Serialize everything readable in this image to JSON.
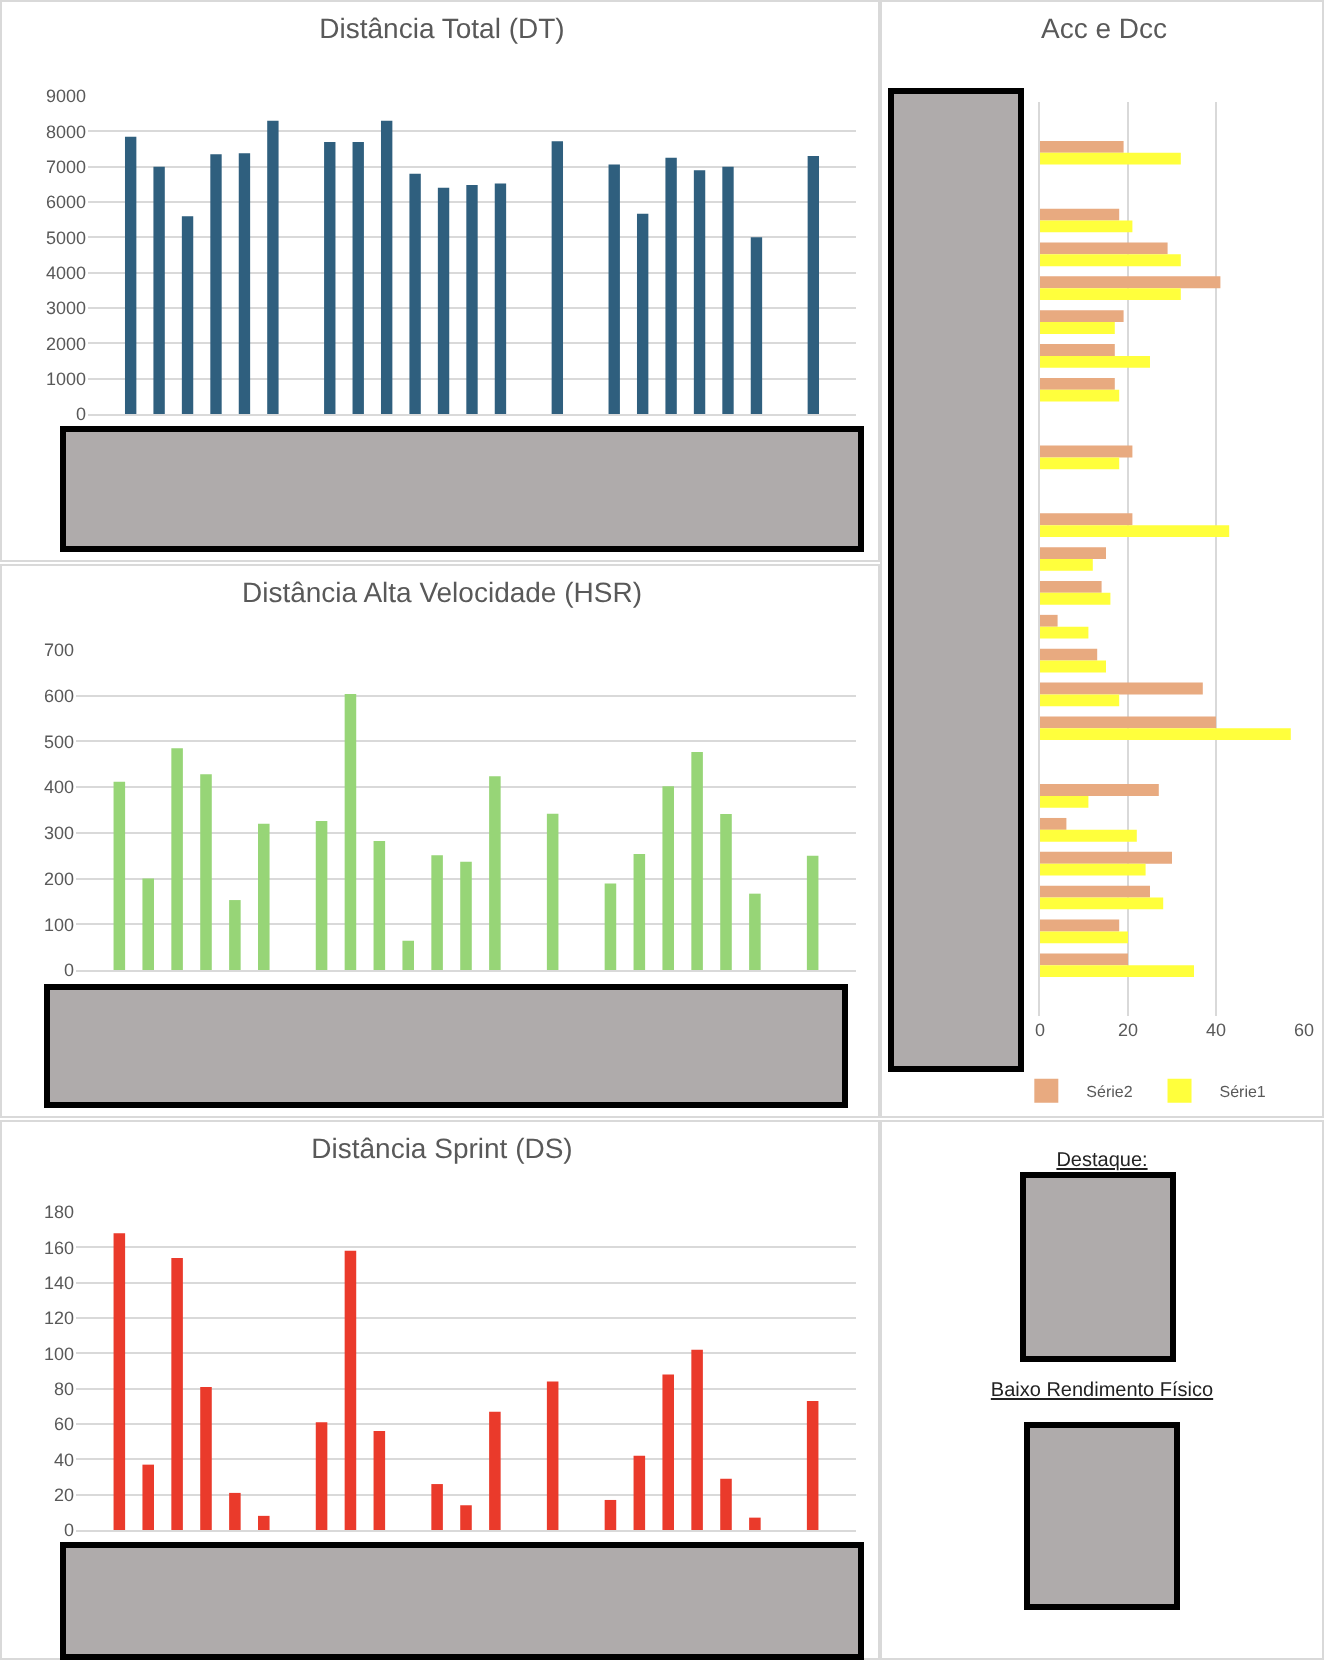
{
  "chart_data": [
    {
      "type": "bar",
      "title": "Distância Total (DT)",
      "categories": [
        null,
        null,
        null,
        null,
        null,
        null,
        null,
        null,
        null,
        null,
        null,
        null,
        null,
        null,
        null,
        null,
        null,
        null,
        null,
        null,
        null,
        null,
        null,
        null,
        null,
        null,
        null
      ],
      "values": [
        null,
        7850,
        7000,
        5600,
        7350,
        7380,
        8300,
        null,
        7700,
        7700,
        8300,
        6800,
        6400,
        6480,
        6520,
        null,
        7720,
        null,
        7060,
        5670,
        7250,
        6900,
        7000,
        5000,
        null,
        7300,
        null
      ],
      "color": "#2f5f7e",
      "ylim": [
        0,
        9000
      ],
      "yticks": [
        0,
        1000,
        2000,
        3000,
        4000,
        5000,
        6000,
        7000,
        8000,
        9000
      ],
      "grid": "y",
      "tick_labels": "y"
    },
    {
      "type": "bar",
      "title": "Distância Alta Velocidade (HSR)",
      "categories": [
        null,
        null,
        null,
        null,
        null,
        null,
        null,
        null,
        null,
        null,
        null,
        null,
        null,
        null,
        null,
        null,
        null,
        null,
        null,
        null,
        null,
        null,
        null,
        null,
        null,
        null,
        null
      ],
      "values": [
        null,
        412,
        200,
        485,
        428,
        153,
        320,
        null,
        326,
        604,
        282,
        64,
        251,
        237,
        424,
        null,
        342,
        null,
        189,
        254,
        402,
        477,
        341,
        167,
        null,
        250,
        null
      ],
      "color": "#97d577",
      "ylim": [
        0,
        700
      ],
      "yticks": [
        0,
        100,
        200,
        300,
        400,
        500,
        600,
        700
      ],
      "grid": "y",
      "tick_labels": "y"
    },
    {
      "type": "bar",
      "title": "Distância Sprint (DS)",
      "categories": [
        null,
        null,
        null,
        null,
        null,
        null,
        null,
        null,
        null,
        null,
        null,
        null,
        null,
        null,
        null,
        null,
        null,
        null,
        null,
        null,
        null,
        null,
        null,
        null,
        null,
        null,
        null
      ],
      "values": [
        null,
        168,
        37,
        154,
        81,
        21,
        8,
        null,
        61,
        158,
        56,
        0,
        26,
        14,
        67,
        null,
        84,
        null,
        17,
        42,
        88,
        102,
        29,
        7,
        null,
        73,
        null
      ],
      "color": "#ea3a2b",
      "ylim": [
        0,
        180
      ],
      "yticks": [
        0,
        20,
        40,
        60,
        80,
        100,
        120,
        140,
        160,
        180
      ],
      "grid": "y",
      "tick_labels": "y"
    },
    {
      "type": "bar",
      "title": "Acc e Dcc",
      "orientation": "horizontal",
      "categories": [
        null,
        null,
        null,
        null,
        null,
        null,
        null,
        null,
        null,
        null,
        null,
        null,
        null,
        null,
        null,
        null,
        null,
        null,
        null,
        null,
        null,
        null,
        null,
        null,
        null,
        null,
        null
      ],
      "series": [
        {
          "name": "Série2",
          "color": "#e8aa80",
          "values": [
            null,
            19,
            null,
            18,
            29,
            41,
            19,
            17,
            17,
            null,
            21,
            null,
            21,
            15,
            14,
            4,
            13,
            37,
            40,
            null,
            27,
            6,
            30,
            25,
            18,
            20,
            null
          ]
        },
        {
          "name": "Série1",
          "color": "#ffff3c",
          "values": [
            null,
            32,
            null,
            21,
            32,
            32,
            17,
            25,
            18,
            null,
            18,
            null,
            43,
            12,
            16,
            11,
            15,
            18,
            57,
            null,
            11,
            22,
            24,
            28,
            20,
            35,
            null
          ]
        }
      ],
      "xlim": [
        0,
        60
      ],
      "xticks": [
        0,
        20,
        40,
        60
      ],
      "grid": "x",
      "legend": "bottom",
      "tick_labels": "x"
    },
    {
      "type": "other",
      "annotations": [
        "Destaque:",
        "Baixo Rendimento Físico"
      ]
    }
  ]
}
